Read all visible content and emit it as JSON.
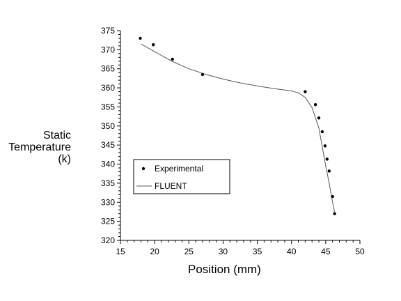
{
  "chart_data": {
    "type": "line",
    "title": "",
    "xlabel": "Position (mm)",
    "ylabel": [
      "Static",
      "Temperature",
      "(k)"
    ],
    "xlim": [
      15,
      50
    ],
    "ylim": [
      320,
      375
    ],
    "xticks": [
      "15",
      "20",
      "25",
      "30",
      "35",
      "40",
      "45",
      "50"
    ],
    "yticks": [
      "320",
      "325",
      "330",
      "335",
      "340",
      "345",
      "350",
      "355",
      "360",
      "365",
      "370",
      "375"
    ],
    "grid": false,
    "legend_position": "lower-left",
    "series": [
      {
        "name": "Experimental",
        "style": "markers",
        "color": "#000000",
        "x": [
          17.9,
          19.8,
          22.6,
          27.0,
          42.0,
          43.5,
          44.0,
          44.5,
          44.9,
          45.2,
          45.5,
          46.0,
          46.3
        ],
        "y": [
          373.0,
          371.3,
          367.5,
          363.5,
          359.0,
          355.6,
          352.1,
          348.5,
          344.8,
          341.3,
          338.2,
          331.5,
          327.0
        ]
      },
      {
        "name": "FLUENT",
        "style": "line",
        "color": "#555555",
        "x": [
          18.0,
          20.0,
          22.5,
          25.0,
          27.5,
          30.0,
          32.5,
          35.0,
          37.5,
          40.0,
          41.0,
          42.0,
          43.0,
          44.0,
          44.5,
          45.0,
          45.5,
          46.0,
          46.3
        ],
        "y": [
          371.5,
          369.5,
          367.0,
          365.0,
          363.5,
          362.3,
          361.3,
          360.5,
          359.8,
          359.2,
          358.7,
          357.5,
          354.8,
          349.5,
          344.5,
          339.5,
          335.0,
          330.0,
          327.5
        ]
      }
    ]
  }
}
